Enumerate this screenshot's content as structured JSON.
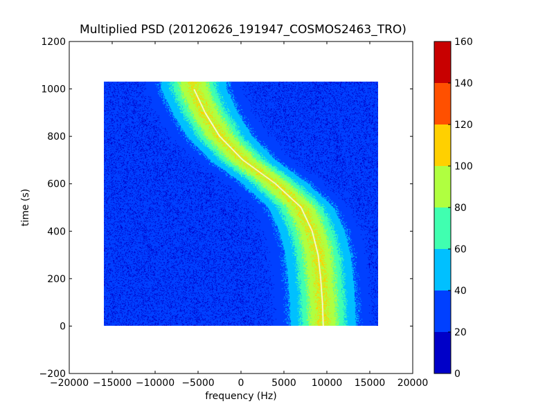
{
  "chart_data": {
    "type": "heatmap",
    "title": "Multiplied PSD (20120626_191947_COSMOS2463_TRO)",
    "xlabel": "frequency (Hz)",
    "ylabel": "time (s)",
    "xlim": [
      -20000,
      20000
    ],
    "ylim": [
      -200,
      1200
    ],
    "x_ticks": [
      -20000,
      -15000,
      -10000,
      -5000,
      0,
      5000,
      10000,
      15000,
      20000
    ],
    "x_tick_labels": [
      "−20000",
      "−15000",
      "−10000",
      "−5000",
      "0",
      "5000",
      "10000",
      "15000",
      "20000"
    ],
    "y_ticks": [
      -200,
      0,
      200,
      400,
      600,
      800,
      1000,
      1200
    ],
    "y_tick_labels": [
      "−200",
      "0",
      "200",
      "400",
      "600",
      "800",
      "1000",
      "1200"
    ],
    "data_extent": {
      "x": [
        -16000,
        16000
      ],
      "y": [
        0,
        1030
      ]
    },
    "background_level": 25,
    "signal_trace": {
      "description_values": "approximate center frequency of the dominant Doppler curve at each time",
      "time": [
        1000,
        900,
        800,
        700,
        600,
        500,
        400,
        300,
        200,
        100,
        0
      ],
      "frequency": [
        -5500,
        -4200,
        -2500,
        200,
        4000,
        7000,
        8300,
        9000,
        9300,
        9500,
        9600
      ],
      "peak_level": 100
    },
    "colorbar": {
      "levels": [
        0,
        20,
        40,
        60,
        80,
        100,
        120,
        140,
        160
      ],
      "tick_labels": [
        "0",
        "20",
        "40",
        "60",
        "80",
        "100",
        "120",
        "140",
        "160"
      ],
      "colors": [
        "#0000c8",
        "#0040ff",
        "#00c0ff",
        "#40ffb0",
        "#b0ff40",
        "#ffd000",
        "#ff5000",
        "#c80000"
      ]
    },
    "grid": false,
    "legend": "none"
  }
}
